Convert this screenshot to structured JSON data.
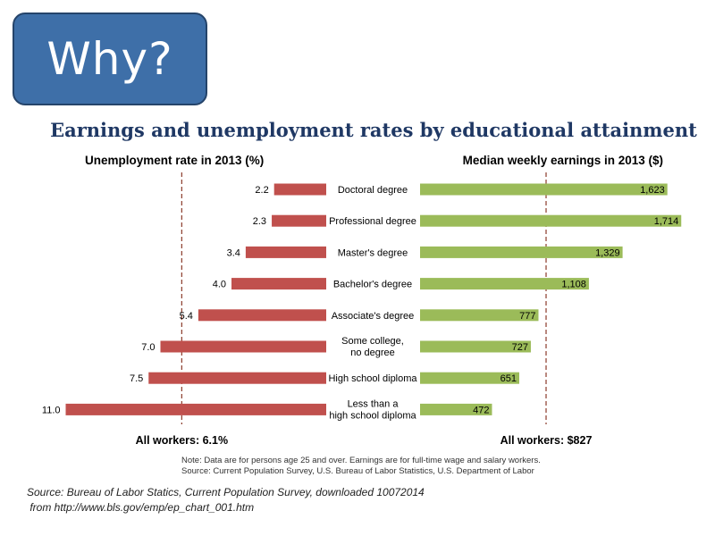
{
  "header": {
    "label": "Why?"
  },
  "chart_data": {
    "type": "bar",
    "title": "Earnings and unemployment rates by educational attainment",
    "categories": [
      [
        "Doctoral degree"
      ],
      [
        "Professional degree"
      ],
      [
        "Master's degree"
      ],
      [
        "Bachelor's degree"
      ],
      [
        "Associate's degree"
      ],
      [
        "Some college,",
        "no degree"
      ],
      [
        "High school diploma"
      ],
      [
        "Less than a",
        "high school diploma"
      ]
    ],
    "left_panel": {
      "title": "Unemployment rate in 2013 (%)",
      "values": [
        2.2,
        2.3,
        3.4,
        4.0,
        5.4,
        7.0,
        7.5,
        11.0
      ],
      "labels": [
        "2.2",
        "2.3",
        "3.4",
        "4.0",
        "5.4",
        "7.0",
        "7.5",
        "11.0"
      ],
      "reference_value": 6.1,
      "reference_label": "All workers: 6.1%",
      "color": "#c0504d",
      "direction": "right-to-left"
    },
    "right_panel": {
      "title": "Median weekly earnings in 2013 ($)",
      "values": [
        1623,
        1714,
        1329,
        1108,
        777,
        727,
        651,
        472
      ],
      "labels": [
        "1,623",
        "1,714",
        "1,329",
        "1,108",
        "777",
        "727",
        "651",
        "472"
      ],
      "reference_value": 827,
      "reference_label": "All workers: $827",
      "color": "#9bbb59",
      "direction": "left-to-right"
    },
    "reference_line_color": "#8b3a2a",
    "title_color": "#1f3864",
    "notes": [
      "Note: Data are for persons age 25 and over. Earnings are for full-time wage and salary workers.",
      "Source: Current Population Survey, U.S. Bureau of Labor Statistics, U.S. Department of Labor"
    ]
  },
  "source": {
    "line1": "Source: Bureau of Labor Statics, Current Population Survey, downloaded 10072014",
    "line2": " from http://www.bls.gov/emp/ep_chart_001.htm"
  }
}
